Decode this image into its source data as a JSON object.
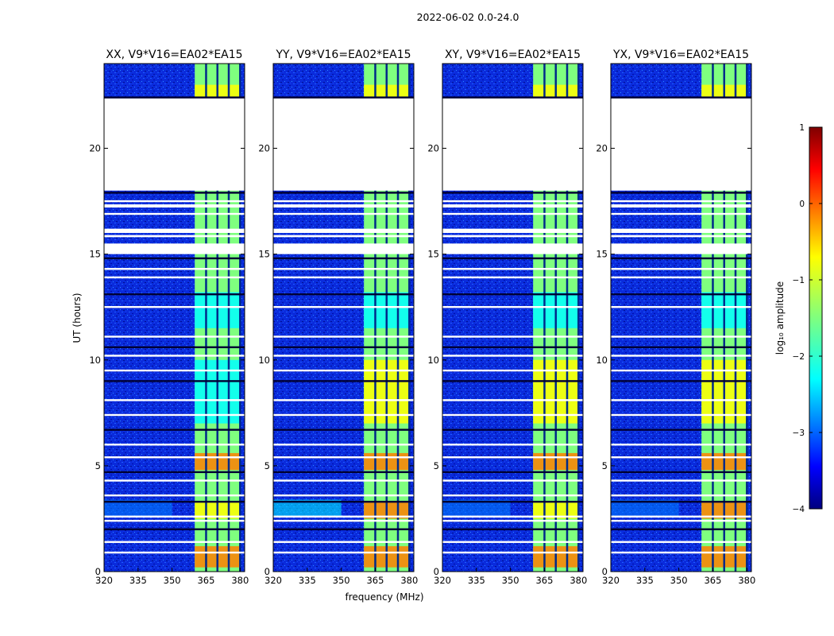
{
  "figure": {
    "suptitle": "2022-06-02 0.0-24.0",
    "xlabel": "frequency (MHz)",
    "ylabel": "UT (hours)"
  },
  "chart_data": {
    "type": "heatmap",
    "x_range": [
      320,
      382
    ],
    "y_range": [
      0,
      24
    ],
    "x_ticks": [
      320,
      335,
      350,
      365,
      380
    ],
    "y_ticks": [
      0,
      5,
      10,
      15,
      20
    ],
    "rfi_band_mhz": [
      360,
      380
    ],
    "rfi_channel_gaps_mhz": [
      365,
      370,
      375,
      380
    ],
    "flagged_ut_intervals": [
      [
        20.8,
        22.4
      ],
      [
        18.0,
        20.8
      ],
      [
        15.0,
        15.5
      ],
      [
        16.0,
        16.2
      ],
      [
        17.2,
        17.35
      ],
      [
        15.8,
        15.9
      ]
    ],
    "thin_flag_lines_ut": [
      22.4,
      21.7,
      20.8,
      17.9,
      17.5,
      16.9,
      14.8,
      14.3,
      13.9,
      13.1,
      12.5,
      11.1,
      10.6,
      10.2,
      9.5,
      9.0,
      8.1,
      7.4,
      6.7,
      6.0,
      5.4,
      4.7,
      4.3,
      3.6,
      3.3,
      2.6,
      2.4,
      2.0,
      1.4,
      0.9
    ],
    "panels": [
      {
        "title": "XX, V9*V16=EA02*EA15"
      },
      {
        "title": "YY, V9*V16=EA02*EA15"
      },
      {
        "title": "XY, V9*V16=EA02*EA15"
      },
      {
        "title": "YX, V9*V16=EA02*EA15"
      }
    ],
    "colorbar": {
      "label": "log₁₀ amplitude",
      "range": [
        -4,
        1
      ],
      "ticks": [
        "1",
        "0",
        "−1",
        "−2",
        "−3",
        "−4"
      ],
      "colormap": "jet"
    }
  },
  "colors": {
    "jet": [
      "#00007f",
      "#0000ff",
      "#007fff",
      "#00ffff",
      "#7fff7f",
      "#ffff00",
      "#ff7f00",
      "#ff0000",
      "#7f0000"
    ]
  }
}
